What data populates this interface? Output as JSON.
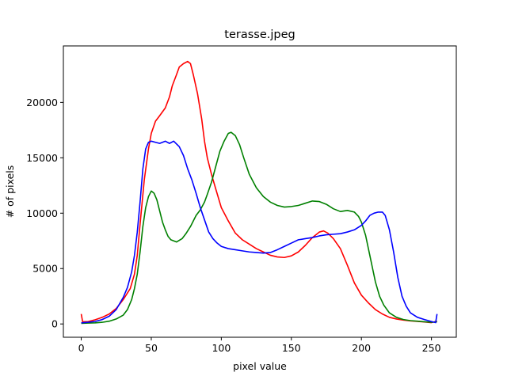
{
  "chart_data": {
    "type": "line",
    "title": "terasse.jpeg",
    "xlabel": "pixel value",
    "ylabel": "# of pixels",
    "xlim": [
      -12.75,
      267.75
    ],
    "ylim": [
      -1200,
      25100
    ],
    "x_ticks": [
      0,
      50,
      100,
      150,
      200,
      250
    ],
    "y_ticks": [
      0,
      5000,
      10000,
      15000,
      20000
    ],
    "x_tick_labels": [
      "0",
      "50",
      "100",
      "150",
      "200",
      "250"
    ],
    "y_tick_labels": [
      "0",
      "5000",
      "10000",
      "15000",
      "20000"
    ],
    "grid": false,
    "legend": "none",
    "series": [
      {
        "color": "#ff0000",
        "points": [
          [
            0,
            900
          ],
          [
            1,
            200
          ],
          [
            5,
            220
          ],
          [
            10,
            380
          ],
          [
            15,
            600
          ],
          [
            20,
            900
          ],
          [
            25,
            1400
          ],
          [
            30,
            2200
          ],
          [
            35,
            3200
          ],
          [
            38,
            4500
          ],
          [
            40,
            6200
          ],
          [
            42,
            9000
          ],
          [
            45,
            13000
          ],
          [
            48,
            15800
          ],
          [
            50,
            17200
          ],
          [
            53,
            18300
          ],
          [
            56,
            18800
          ],
          [
            60,
            19500
          ],
          [
            63,
            20500
          ],
          [
            65,
            21500
          ],
          [
            68,
            22500
          ],
          [
            70,
            23200
          ],
          [
            73,
            23500
          ],
          [
            76,
            23700
          ],
          [
            78,
            23500
          ],
          [
            80,
            22500
          ],
          [
            83,
            20800
          ],
          [
            86,
            18500
          ],
          [
            88,
            16500
          ],
          [
            90,
            15000
          ],
          [
            93,
            13500
          ],
          [
            96,
            12200
          ],
          [
            100,
            10500
          ],
          [
            105,
            9300
          ],
          [
            110,
            8200
          ],
          [
            115,
            7600
          ],
          [
            120,
            7200
          ],
          [
            125,
            6800
          ],
          [
            130,
            6500
          ],
          [
            135,
            6200
          ],
          [
            140,
            6050
          ],
          [
            145,
            6000
          ],
          [
            150,
            6150
          ],
          [
            155,
            6500
          ],
          [
            160,
            7100
          ],
          [
            165,
            7800
          ],
          [
            170,
            8300
          ],
          [
            173,
            8400
          ],
          [
            176,
            8200
          ],
          [
            180,
            7700
          ],
          [
            185,
            6800
          ],
          [
            190,
            5300
          ],
          [
            195,
            3700
          ],
          [
            200,
            2600
          ],
          [
            205,
            1900
          ],
          [
            210,
            1300
          ],
          [
            215,
            900
          ],
          [
            220,
            600
          ],
          [
            225,
            450
          ],
          [
            230,
            350
          ],
          [
            235,
            280
          ],
          [
            240,
            230
          ],
          [
            245,
            180
          ],
          [
            250,
            120
          ],
          [
            254,
            250
          ]
        ]
      },
      {
        "color": "#008000",
        "points": [
          [
            0,
            50
          ],
          [
            5,
            80
          ],
          [
            10,
            100
          ],
          [
            15,
            150
          ],
          [
            20,
            250
          ],
          [
            25,
            450
          ],
          [
            30,
            800
          ],
          [
            33,
            1300
          ],
          [
            36,
            2200
          ],
          [
            38,
            3200
          ],
          [
            40,
            4500
          ],
          [
            42,
            6500
          ],
          [
            44,
            8800
          ],
          [
            46,
            10500
          ],
          [
            48,
            11500
          ],
          [
            50,
            12000
          ],
          [
            52,
            11800
          ],
          [
            54,
            11200
          ],
          [
            56,
            10200
          ],
          [
            58,
            9200
          ],
          [
            60,
            8500
          ],
          [
            62,
            7900
          ],
          [
            64,
            7600
          ],
          [
            66,
            7500
          ],
          [
            68,
            7400
          ],
          [
            70,
            7550
          ],
          [
            72,
            7700
          ],
          [
            75,
            8200
          ],
          [
            78,
            8800
          ],
          [
            80,
            9300
          ],
          [
            82,
            9800
          ],
          [
            85,
            10300
          ],
          [
            88,
            11000
          ],
          [
            90,
            11700
          ],
          [
            93,
            12800
          ],
          [
            96,
            14200
          ],
          [
            99,
            15600
          ],
          [
            102,
            16500
          ],
          [
            105,
            17200
          ],
          [
            107,
            17300
          ],
          [
            110,
            17000
          ],
          [
            113,
            16200
          ],
          [
            116,
            15000
          ],
          [
            120,
            13500
          ],
          [
            125,
            12300
          ],
          [
            130,
            11500
          ],
          [
            135,
            11000
          ],
          [
            140,
            10700
          ],
          [
            145,
            10550
          ],
          [
            150,
            10600
          ],
          [
            155,
            10700
          ],
          [
            160,
            10900
          ],
          [
            165,
            11100
          ],
          [
            170,
            11050
          ],
          [
            175,
            10800
          ],
          [
            180,
            10400
          ],
          [
            185,
            10150
          ],
          [
            190,
            10250
          ],
          [
            195,
            10100
          ],
          [
            198,
            9700
          ],
          [
            200,
            9200
          ],
          [
            203,
            8000
          ],
          [
            206,
            6200
          ],
          [
            208,
            5000
          ],
          [
            210,
            3800
          ],
          [
            213,
            2500
          ],
          [
            216,
            1700
          ],
          [
            220,
            1000
          ],
          [
            225,
            600
          ],
          [
            230,
            400
          ],
          [
            235,
            300
          ],
          [
            240,
            250
          ],
          [
            245,
            200
          ],
          [
            250,
            150
          ],
          [
            254,
            200
          ]
        ]
      },
      {
        "color": "#0000ff",
        "points": [
          [
            0,
            100
          ],
          [
            5,
            150
          ],
          [
            10,
            230
          ],
          [
            15,
            400
          ],
          [
            20,
            700
          ],
          [
            25,
            1300
          ],
          [
            30,
            2400
          ],
          [
            33,
            3300
          ],
          [
            36,
            4700
          ],
          [
            38,
            6200
          ],
          [
            40,
            8300
          ],
          [
            42,
            11000
          ],
          [
            44,
            14000
          ],
          [
            46,
            15800
          ],
          [
            48,
            16400
          ],
          [
            50,
            16500
          ],
          [
            53,
            16400
          ],
          [
            56,
            16300
          ],
          [
            60,
            16500
          ],
          [
            63,
            16300
          ],
          [
            66,
            16500
          ],
          [
            70,
            16000
          ],
          [
            73,
            15200
          ],
          [
            76,
            14000
          ],
          [
            79,
            13000
          ],
          [
            82,
            11800
          ],
          [
            85,
            10500
          ],
          [
            88,
            9400
          ],
          [
            91,
            8300
          ],
          [
            94,
            7700
          ],
          [
            97,
            7300
          ],
          [
            100,
            7000
          ],
          [
            105,
            6800
          ],
          [
            110,
            6700
          ],
          [
            115,
            6600
          ],
          [
            120,
            6500
          ],
          [
            125,
            6450
          ],
          [
            130,
            6400
          ],
          [
            135,
            6450
          ],
          [
            140,
            6700
          ],
          [
            145,
            7000
          ],
          [
            150,
            7300
          ],
          [
            155,
            7600
          ],
          [
            160,
            7700
          ],
          [
            165,
            7800
          ],
          [
            170,
            7950
          ],
          [
            175,
            8050
          ],
          [
            180,
            8100
          ],
          [
            185,
            8150
          ],
          [
            190,
            8300
          ],
          [
            195,
            8500
          ],
          [
            200,
            8900
          ],
          [
            203,
            9300
          ],
          [
            206,
            9800
          ],
          [
            209,
            10000
          ],
          [
            212,
            10100
          ],
          [
            215,
            10100
          ],
          [
            217,
            9800
          ],
          [
            220,
            8500
          ],
          [
            223,
            6500
          ],
          [
            226,
            4200
          ],
          [
            229,
            2500
          ],
          [
            232,
            1600
          ],
          [
            235,
            1000
          ],
          [
            240,
            600
          ],
          [
            245,
            400
          ],
          [
            250,
            220
          ],
          [
            253,
            120
          ],
          [
            254,
            900
          ]
        ]
      }
    ]
  }
}
